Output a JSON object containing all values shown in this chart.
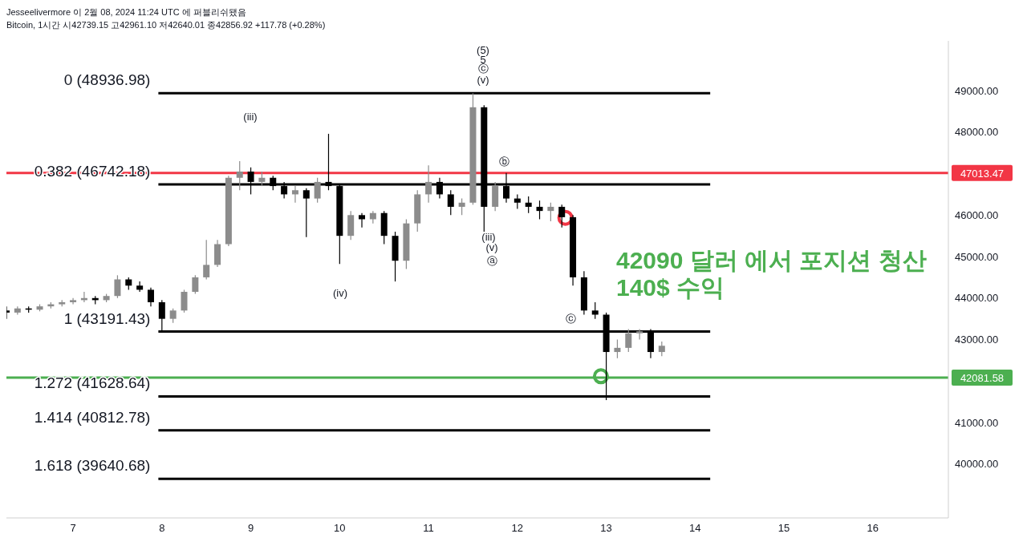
{
  "chart_data": {
    "type": "candlestick",
    "title": "Bitcoin, 1시간 시42739.15 고42961.10 저42640.01 종42856.92 +117.78 (+0.28%)",
    "subtitle": "Jesseelivermore 이 2월 08, 2024 11:24 UTC 에 퍼블리쉬됐음",
    "x": [
      6.25,
      6.375,
      6.5,
      6.625,
      6.75,
      6.875,
      7.0,
      7.125,
      7.25,
      7.375,
      7.5,
      7.625,
      7.75,
      7.875,
      8.0,
      8.125,
      8.25,
      8.375,
      8.5,
      8.625,
      8.75,
      8.875,
      9.0,
      9.125,
      9.25,
      9.375,
      9.5,
      9.625,
      9.75,
      9.875,
      10.0,
      10.125,
      10.25,
      10.375,
      10.5,
      10.625,
      10.75,
      10.875,
      11.0,
      11.125,
      11.25,
      11.375,
      11.5,
      11.625,
      11.75,
      11.875,
      12.0,
      12.125,
      12.25,
      12.375,
      12.5,
      12.625,
      12.75,
      12.875,
      13.0,
      13.125,
      13.25,
      13.375,
      13.5,
      13.625
    ],
    "ohlc": [
      [
        43700,
        43800,
        43500,
        43650
      ],
      [
        43650,
        43800,
        43600,
        43750
      ],
      [
        43750,
        43800,
        43650,
        43720
      ],
      [
        43720,
        43850,
        43680,
        43800
      ],
      [
        43800,
        43900,
        43750,
        43850
      ],
      [
        43850,
        43950,
        43800,
        43900
      ],
      [
        43900,
        44000,
        43850,
        43950
      ],
      [
        43950,
        44150,
        43900,
        44000
      ],
      [
        44000,
        44050,
        43850,
        43950
      ],
      [
        43950,
        44100,
        43900,
        44050
      ],
      [
        44050,
        44550,
        44000,
        44450
      ],
      [
        44450,
        44500,
        44200,
        44300
      ],
      [
        44300,
        44400,
        44150,
        44200
      ],
      [
        44200,
        44250,
        43800,
        43900
      ],
      [
        43900,
        43950,
        43191.43,
        43500
      ],
      [
        43500,
        43750,
        43400,
        43700
      ],
      [
        43700,
        44200,
        43650,
        44150
      ],
      [
        44150,
        44550,
        44100,
        44500
      ],
      [
        44500,
        45400,
        44450,
        44800
      ],
      [
        44800,
        45400,
        44750,
        45300
      ],
      [
        45300,
        46950,
        45250,
        46900
      ],
      [
        46900,
        47300,
        46600,
        47050
      ],
      [
        47050,
        47150,
        46500,
        46800
      ],
      [
        46800,
        47050,
        46700,
        46900
      ],
      [
        46900,
        46950,
        46600,
        46700
      ],
      [
        46700,
        46800,
        46400,
        46500
      ],
      [
        46500,
        46700,
        46300,
        46600
      ],
      [
        46600,
        46650,
        45470,
        46400
      ],
      [
        46400,
        46900,
        46300,
        46800
      ],
      [
        46800,
        47960,
        46600,
        46700
      ],
      [
        46700,
        46750,
        44820,
        45500
      ],
      [
        45500,
        46100,
        45400,
        46000
      ],
      [
        46000,
        46050,
        45700,
        45900
      ],
      [
        45900,
        46100,
        45800,
        46050
      ],
      [
        46050,
        46100,
        45300,
        45500
      ],
      [
        45500,
        45600,
        44400,
        44900
      ],
      [
        44900,
        45900,
        44700,
        45800
      ],
      [
        45800,
        46600,
        45600,
        46500
      ],
      [
        46500,
        47200,
        46300,
        46800
      ],
      [
        46800,
        46900,
        46400,
        46500
      ],
      [
        46500,
        46600,
        46000,
        46200
      ],
      [
        46200,
        46400,
        46000,
        46300
      ],
      [
        46300,
        48936.98,
        46250,
        48600
      ],
      [
        48600,
        48650,
        45600,
        46200
      ],
      [
        46200,
        46800,
        46100,
        46700
      ],
      [
        46700,
        47013.47,
        46300,
        46400
      ],
      [
        46400,
        46500,
        46150,
        46300
      ],
      [
        46300,
        46450,
        46050,
        46200
      ],
      [
        46200,
        46350,
        45900,
        46100
      ],
      [
        46100,
        46300,
        45850,
        46200
      ],
      [
        46200,
        46250,
        45700,
        45950
      ],
      [
        45950,
        46000,
        44300,
        44500
      ],
      [
        44500,
        44650,
        43600,
        43700
      ],
      [
        43700,
        43900,
        43500,
        43600
      ],
      [
        43600,
        43650,
        41540,
        42700
      ],
      [
        42700,
        43000,
        42550,
        42800
      ],
      [
        42800,
        43250,
        42700,
        43150
      ],
      [
        43150,
        43250,
        43000,
        43200
      ],
      [
        43200,
        43250,
        42550,
        42700
      ],
      [
        42700,
        42950,
        42600,
        42850
      ]
    ],
    "colors": [
      "#000000",
      "#8c8c8c",
      "#000000",
      "#8c8c8c",
      "#8c8c8c",
      "#8c8c8c",
      "#8c8c8c",
      "#8c8c8c",
      "#000000",
      "#8c8c8c",
      "#8c8c8c",
      "#000000",
      "#000000",
      "#000000",
      "#000000",
      "#8c8c8c",
      "#8c8c8c",
      "#8c8c8c",
      "#8c8c8c",
      "#8c8c8c",
      "#8c8c8c",
      "#8c8c8c",
      "#000000",
      "#8c8c8c",
      "#000000",
      "#000000",
      "#8c8c8c",
      "#000000",
      "#8c8c8c",
      "#000000",
      "#000000",
      "#8c8c8c",
      "#000000",
      "#8c8c8c",
      "#000000",
      "#000000",
      "#8c8c8c",
      "#8c8c8c",
      "#8c8c8c",
      "#000000",
      "#000000",
      "#8c8c8c",
      "#8c8c8c",
      "#000000",
      "#8c8c8c",
      "#000000",
      "#000000",
      "#000000",
      "#000000",
      "#8c8c8c",
      "#000000",
      "#000000",
      "#000000",
      "#000000",
      "#000000",
      "#8c8c8c",
      "#8c8c8c",
      "#8c8c8c",
      "#000000",
      "#8c8c8c"
    ],
    "series": [
      {
        "type": "line",
        "name": "0 (48936.98)",
        "color": "#000000",
        "x": [
          7.96,
          14.17
        ],
        "values": [
          48936.98,
          48936.98
        ]
      },
      {
        "type": "line",
        "name": "0.382 (46742.18)",
        "color": "#000000",
        "x": [
          7.96,
          14.17
        ],
        "values": [
          46742.18,
          46742.18
        ]
      },
      {
        "type": "line",
        "name": "1 (43191.43)",
        "color": "#000000",
        "x": [
          7.96,
          14.17
        ],
        "values": [
          43191.43,
          43191.43
        ]
      },
      {
        "type": "line",
        "name": "1.272 (41628.64)",
        "color": "#000000",
        "x": [
          7.96,
          14.17
        ],
        "values": [
          41628.64,
          41628.64
        ]
      },
      {
        "type": "line",
        "name": "1.414 (40812.78)",
        "color": "#000000",
        "x": [
          7.96,
          14.17
        ],
        "values": [
          40812.78,
          40812.78
        ]
      },
      {
        "type": "line",
        "name": "1.618 (39640.68)",
        "color": "#000000",
        "x": [
          7.96,
          14.17
        ],
        "values": [
          39640.68,
          39640.68
        ]
      },
      {
        "type": "scatter",
        "color": "#f23645",
        "marker": "circle",
        "x": [
          12.54
        ],
        "values": [
          45935
        ]
      },
      {
        "type": "scatter",
        "color": "#4caf50",
        "marker": "circle",
        "x": [
          12.94
        ],
        "values": [
          42115
        ]
      }
    ],
    "ref_lines": [
      {
        "axis": "y",
        "value": 47013.47,
        "label": "47013.47",
        "color": "#f23645"
      },
      {
        "axis": "y",
        "value": 42081.58,
        "label": "42081.58",
        "color": "#4caf50"
      }
    ],
    "annotations": [
      "(5)",
      "5",
      "ⓒ",
      "(v)",
      "(iii)",
      "(iv)",
      "ⓑ",
      "(iii)",
      "(v)",
      "ⓐ",
      "ⓒ",
      "42090 달러 에서 포지션 청산",
      "140$ 수익"
    ],
    "xlim": [
      6.25,
      16.85
    ],
    "xticks": [
      7,
      8,
      9,
      10,
      11,
      12,
      13,
      14,
      15,
      16
    ],
    "ylim": [
      38700,
      50200
    ],
    "yticks": [
      {
        "value": 40000,
        "label": "40000.00"
      },
      {
        "value": 41000,
        "label": "41000.00"
      },
      {
        "value": 43000,
        "label": "43000.00"
      },
      {
        "value": 44000,
        "label": "44000.00"
      },
      {
        "value": 45000,
        "label": "45000.00"
      },
      {
        "value": 46000,
        "label": "46000.00"
      },
      {
        "value": 48000,
        "label": "48000.00"
      },
      {
        "value": 49000,
        "label": "49000.00"
      }
    ],
    "grid": false,
    "legend": false
  }
}
